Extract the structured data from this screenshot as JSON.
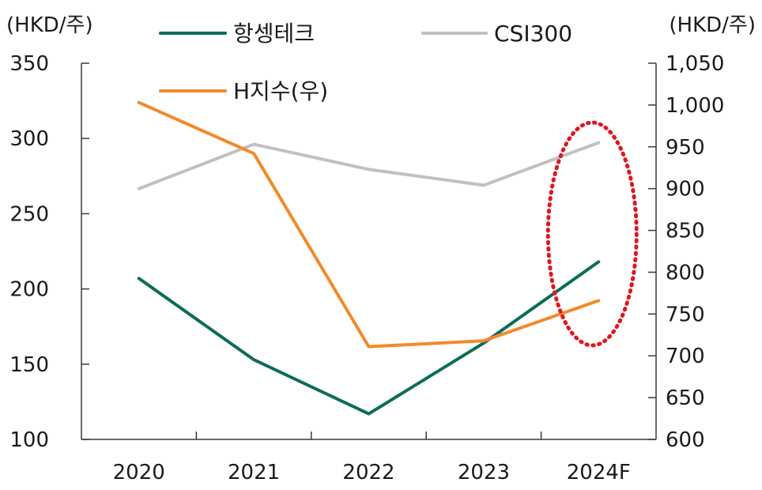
{
  "chart_data": {
    "type": "line",
    "categories": [
      "2020",
      "2021",
      "2022",
      "2023",
      "2024F"
    ],
    "left_axis": {
      "unit": "(HKD/주)",
      "ylim": [
        100,
        350
      ],
      "ticks": [
        "350",
        "300",
        "250",
        "200",
        "150",
        "100"
      ]
    },
    "right_axis": {
      "unit": "(HKD/주)",
      "ylim": [
        600,
        1050
      ],
      "ticks": [
        "1,050",
        "1,000",
        "950",
        "900",
        "850",
        "800",
        "750",
        "700",
        "650",
        "600"
      ]
    },
    "series": [
      {
        "name": "항셍테크",
        "axis": "left",
        "color": "#0d6b5a",
        "values": [
          207,
          153,
          117,
          164,
          218
        ]
      },
      {
        "name": "CSI300",
        "axis": "right",
        "color": "#c0c0c0",
        "values": [
          900,
          953,
          923,
          904,
          955
        ]
      },
      {
        "name": "H지수(우)",
        "axis": "right",
        "color": "#f28a2a",
        "values": [
          1003,
          942,
          711,
          718,
          766
        ]
      }
    ],
    "highlight": {
      "category": "2024F",
      "shape": "dotted-ellipse",
      "color": "#e0161f"
    },
    "grid": false,
    "legend_position": "top"
  }
}
